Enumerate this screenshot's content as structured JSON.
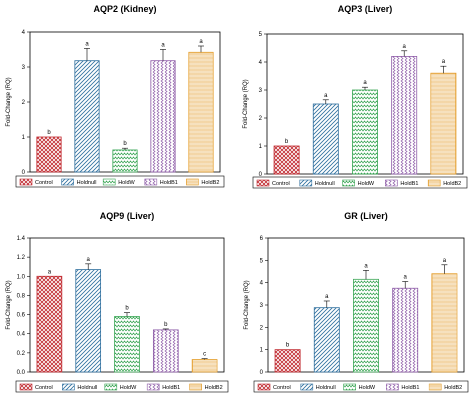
{
  "groups": [
    {
      "label": "Control",
      "color": "#c0272d",
      "pattern": "cross"
    },
    {
      "label": "Holdnull",
      "color": "#2e6f9e",
      "pattern": "diag"
    },
    {
      "label": "HoldW",
      "color": "#3aa655",
      "pattern": "hzig"
    },
    {
      "label": "HoldB1",
      "color": "#8e5ca8",
      "pattern": "vzig"
    },
    {
      "label": "HoldB2",
      "color": "#e39b26",
      "pattern": "hatch"
    }
  ],
  "chart_data": [
    {
      "type": "bar",
      "title": "AQP2 (Kidney)",
      "ylabel": "Fold-Change (RQ)",
      "ylim": [
        0,
        4
      ],
      "yticks": [
        0,
        1,
        2,
        3,
        4
      ],
      "categories": [
        "Control",
        "Holdnull",
        "HoldW",
        "HoldB1",
        "HoldB2"
      ],
      "values": [
        1.0,
        3.18,
        0.63,
        3.18,
        3.42
      ],
      "errors": [
        0.0,
        0.35,
        0.05,
        0.32,
        0.18
      ],
      "letters": [
        "b",
        "a",
        "b",
        "a",
        "a"
      ]
    },
    {
      "type": "bar",
      "title": "AQP3 (Liver)",
      "ylabel": "Fold-Change (RQ)",
      "ylim": [
        0,
        5
      ],
      "yticks": [
        0,
        1,
        2,
        3,
        4,
        5
      ],
      "categories": [
        "Control",
        "Holdnull",
        "HoldW",
        "HoldB1",
        "HoldB2"
      ],
      "values": [
        1.0,
        2.5,
        3.0,
        4.2,
        3.6
      ],
      "errors": [
        0.0,
        0.15,
        0.1,
        0.2,
        0.25
      ],
      "letters": [
        "b",
        "a",
        "a",
        "a",
        "a"
      ]
    },
    {
      "type": "bar",
      "title": "AQP9 (Liver)",
      "ylabel": "Fold-Change (RQ)",
      "ylim": [
        0,
        1.4
      ],
      "yticks": [
        "0.0",
        "0.2",
        "0.4",
        "0.6",
        "0.8",
        "1.0",
        "1.2",
        "1.4"
      ],
      "categories": [
        "Control",
        "Holdnull",
        "HoldW",
        "HoldB1",
        "HoldB2"
      ],
      "values": [
        1.0,
        1.07,
        0.58,
        0.44,
        0.13
      ],
      "errors": [
        0.0,
        0.06,
        0.04,
        0.01,
        0.01
      ],
      "letters": [
        "a",
        "a",
        "b",
        "b",
        "c"
      ]
    },
    {
      "type": "bar",
      "title": "GR (Liver)",
      "ylabel": "Fold-Change (RQ)",
      "ylim": [
        0,
        6
      ],
      "yticks": [
        0,
        1,
        2,
        3,
        4,
        5,
        6
      ],
      "categories": [
        "Control",
        "Holdnull",
        "HoldW",
        "HoldB1",
        "HoldB2"
      ],
      "values": [
        1.0,
        2.88,
        4.15,
        3.75,
        4.4
      ],
      "errors": [
        0.0,
        0.3,
        0.4,
        0.3,
        0.4
      ],
      "letters": [
        "b",
        "a",
        "a",
        "a",
        "a"
      ]
    }
  ]
}
